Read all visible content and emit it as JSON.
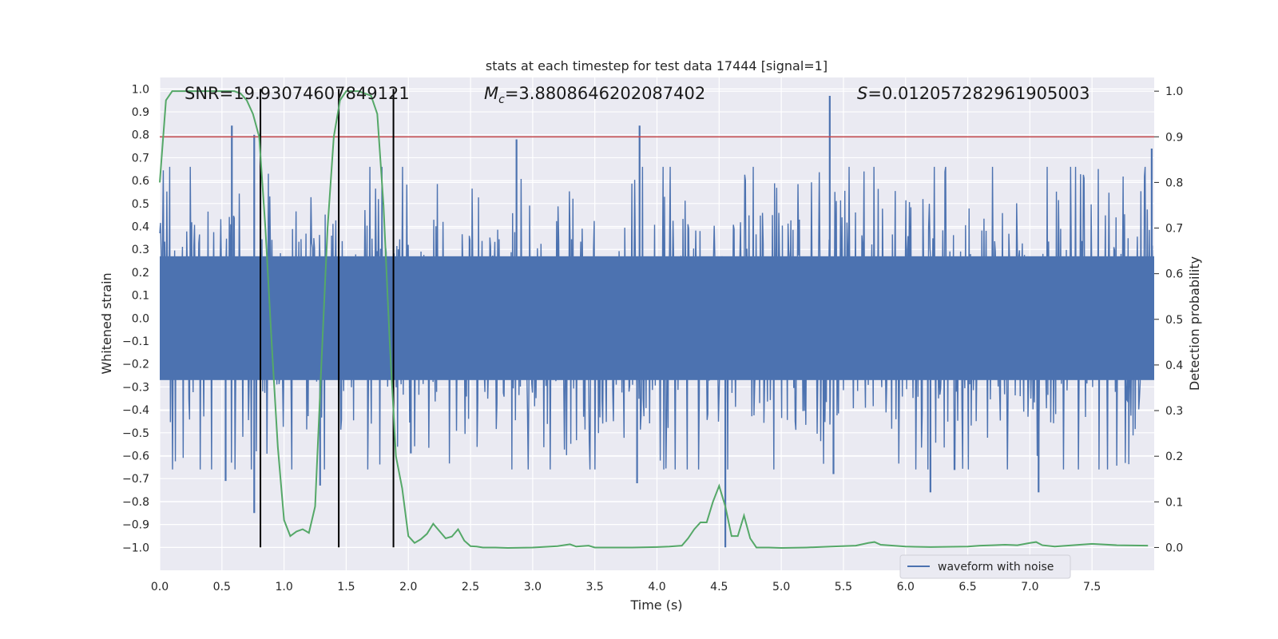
{
  "chart_data": {
    "type": "line",
    "title": "stats at each timestep for test data 17444 [signal=1]",
    "xlabel": "Time (s)",
    "ylabel_left": "Whitened strain",
    "ylabel_right": "Detection probability",
    "xlim": [
      0.0,
      8.0
    ],
    "ylim_left": [
      -1.1,
      1.05
    ],
    "ylim_right": [
      -0.05,
      1.03
    ],
    "x_ticks": [
      "0.0",
      "0.5",
      "1.0",
      "1.5",
      "2.0",
      "2.5",
      "3.0",
      "3.5",
      "4.0",
      "4.5",
      "5.0",
      "5.5",
      "6.0",
      "6.5",
      "7.0",
      "7.5"
    ],
    "left_ticks": [
      "1.0",
      "0.9",
      "0.8",
      "0.7",
      "0.6",
      "0.5",
      "0.4",
      "0.3",
      "0.2",
      "0.1",
      "0.0",
      "-0.1",
      "-0.2",
      "-0.3",
      "-0.4",
      "-0.5",
      "-0.6",
      "-0.7",
      "-0.8",
      "-0.9",
      "-1.0"
    ],
    "right_ticks": [
      "0.0",
      "0.1",
      "0.2",
      "0.3",
      "0.4",
      "0.5",
      "0.6",
      "0.7",
      "0.8",
      "0.9",
      "1.0"
    ],
    "annotations": {
      "snr": "SNR=19.93074607849121",
      "mc_symbol": "M",
      "mc_sub": "c",
      "mc_value": "=3.8808646202087402",
      "s_symbol": "S",
      "s_value": "=0.012057282961905003"
    },
    "legend": {
      "label": "waveform with noise",
      "placement": "lower-right"
    },
    "threshold": {
      "value": 0.9,
      "axis": "right",
      "color": "#c44e52"
    },
    "vertical_markers": [
      0.81,
      1.44,
      1.88
    ],
    "waveform": {
      "name": "waveform with noise",
      "color": "#4c72b0",
      "samples": 1400,
      "core_amplitude": 0.27,
      "spikes": [
        {
          "t": 0.58,
          "v": 0.84
        },
        {
          "t": 0.76,
          "v": 0.8
        },
        {
          "t": 0.76,
          "v": -0.85
        },
        {
          "t": 0.53,
          "v": -0.71
        },
        {
          "t": 1.29,
          "v": -0.73
        },
        {
          "t": 2.87,
          "v": 0.78
        },
        {
          "t": 3.86,
          "v": 0.84
        },
        {
          "t": 3.84,
          "v": -0.72
        },
        {
          "t": 4.55,
          "v": -1.0
        },
        {
          "t": 5.39,
          "v": 0.97
        },
        {
          "t": 5.42,
          "v": -0.68
        },
        {
          "t": 6.2,
          "v": -0.76
        },
        {
          "t": 7.07,
          "v": -0.76
        },
        {
          "t": 7.98,
          "v": 0.74
        },
        {
          "t": 2.02,
          "v": -0.59
        }
      ]
    },
    "series": [
      {
        "name": "detection probability",
        "color": "#55a868",
        "axis": "right",
        "x": [
          0.0,
          0.05,
          0.1,
          0.2,
          0.3,
          0.4,
          0.5,
          0.6,
          0.65,
          0.7,
          0.75,
          0.8,
          0.85,
          0.9,
          0.95,
          1.0,
          1.05,
          1.1,
          1.15,
          1.2,
          1.25,
          1.3,
          1.35,
          1.4,
          1.45,
          1.5,
          1.55,
          1.6,
          1.7,
          1.75,
          1.8,
          1.85,
          1.9,
          1.95,
          2.0,
          2.05,
          2.1,
          2.15,
          2.2,
          2.25,
          2.3,
          2.35,
          2.4,
          2.45,
          2.5,
          2.55,
          2.6,
          2.7,
          2.8,
          3.0,
          3.2,
          3.3,
          3.35,
          3.45,
          3.5,
          3.6,
          3.8,
          4.0,
          4.1,
          4.2,
          4.25,
          4.3,
          4.35,
          4.4,
          4.45,
          4.5,
          4.55,
          4.6,
          4.65,
          4.7,
          4.75,
          4.8,
          4.85,
          4.9,
          5.0,
          5.2,
          5.4,
          5.6,
          5.7,
          5.75,
          5.8,
          6.0,
          6.2,
          6.5,
          6.6,
          6.7,
          6.8,
          6.9,
          7.0,
          7.05,
          7.1,
          7.2,
          7.3,
          7.5,
          7.7,
          7.95
        ],
        "values": [
          0.8,
          0.98,
          1.0,
          1.0,
          1.0,
          1.0,
          1.0,
          1.0,
          0.995,
          0.98,
          0.95,
          0.9,
          0.7,
          0.45,
          0.22,
          0.06,
          0.025,
          0.035,
          0.04,
          0.032,
          0.09,
          0.4,
          0.7,
          0.9,
          0.98,
          1.0,
          1.0,
          1.0,
          0.99,
          0.95,
          0.75,
          0.45,
          0.2,
          0.13,
          0.025,
          0.01,
          0.018,
          0.03,
          0.052,
          0.036,
          0.02,
          0.024,
          0.04,
          0.015,
          0.003,
          0.002,
          0.0,
          0.0,
          -0.001,
          0.0,
          0.003,
          0.007,
          0.002,
          0.004,
          0.0,
          0.0,
          0.0,
          0.001,
          0.002,
          0.004,
          0.02,
          0.04,
          0.055,
          0.055,
          0.1,
          0.135,
          0.09,
          0.025,
          0.025,
          0.07,
          0.02,
          0.0,
          0.0,
          0.0,
          -0.001,
          0.0,
          0.002,
          0.004,
          0.01,
          0.012,
          0.006,
          0.002,
          0.001,
          0.002,
          0.004,
          0.005,
          0.006,
          0.005,
          0.01,
          0.012,
          0.005,
          0.002,
          0.004,
          0.008,
          0.005,
          0.004
        ]
      }
    ],
    "grid": true,
    "colors": {
      "background": "#eaeaf2",
      "grid": "#ffffff",
      "marker": "#000000"
    }
  }
}
